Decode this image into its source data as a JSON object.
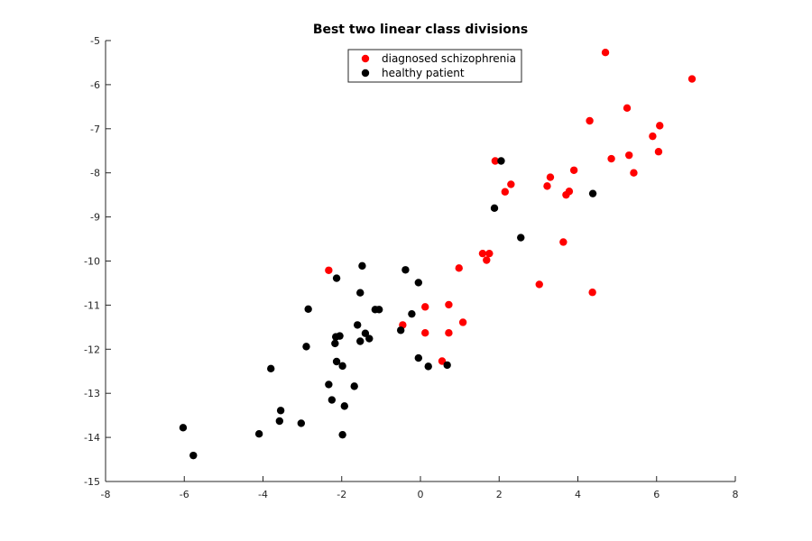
{
  "chart_data": {
    "type": "scatter",
    "title": "Best two linear class divisions",
    "xlabel": "",
    "ylabel": "",
    "xlim": [
      -8,
      8
    ],
    "ylim": [
      -15,
      -5
    ],
    "xticks": [
      -8,
      -6,
      -4,
      -2,
      0,
      2,
      4,
      6,
      8
    ],
    "yticks": [
      -5,
      -6,
      -7,
      -8,
      -9,
      -10,
      -11,
      -12,
      -13,
      -14,
      -15
    ],
    "grid": false,
    "legend_position": "top-center",
    "series": [
      {
        "name": "diagnosed schizophrenia",
        "color": "#ff0000",
        "points": [
          [
            4.7,
            -5.27
          ],
          [
            6.9,
            -5.87
          ],
          [
            4.3,
            -6.82
          ],
          [
            5.25,
            -6.53
          ],
          [
            6.08,
            -6.93
          ],
          [
            5.9,
            -7.17
          ],
          [
            5.3,
            -7.6
          ],
          [
            4.85,
            -7.68
          ],
          [
            6.05,
            -7.52
          ],
          [
            5.42,
            -8.0
          ],
          [
            1.9,
            -7.73
          ],
          [
            3.9,
            -7.94
          ],
          [
            3.3,
            -8.1
          ],
          [
            3.22,
            -8.3
          ],
          [
            2.3,
            -8.26
          ],
          [
            2.15,
            -8.43
          ],
          [
            3.78,
            -8.42
          ],
          [
            3.7,
            -8.5
          ],
          [
            3.63,
            -9.57
          ],
          [
            1.58,
            -9.83
          ],
          [
            1.75,
            -9.83
          ],
          [
            1.68,
            -9.98
          ],
          [
            0.98,
            -10.16
          ],
          [
            3.02,
            -10.53
          ],
          [
            4.37,
            -10.71
          ],
          [
            -2.33,
            -10.21
          ],
          [
            0.12,
            -11.04
          ],
          [
            0.72,
            -10.99
          ],
          [
            -0.45,
            -11.45
          ],
          [
            1.08,
            -11.39
          ],
          [
            0.12,
            -11.63
          ],
          [
            0.72,
            -11.63
          ],
          [
            0.55,
            -12.27
          ]
        ]
      },
      {
        "name": "healthy patient",
        "color": "#000000",
        "points": [
          [
            2.05,
            -7.73
          ],
          [
            4.38,
            -8.47
          ],
          [
            1.88,
            -8.8
          ],
          [
            2.55,
            -9.47
          ],
          [
            -1.48,
            -10.11
          ],
          [
            -0.38,
            -10.2
          ],
          [
            -2.13,
            -10.39
          ],
          [
            -0.05,
            -10.49
          ],
          [
            -1.53,
            -10.72
          ],
          [
            -2.85,
            -11.09
          ],
          [
            -1.15,
            -11.1
          ],
          [
            -1.05,
            -11.1
          ],
          [
            -0.22,
            -11.2
          ],
          [
            -1.6,
            -11.45
          ],
          [
            -0.5,
            -11.57
          ],
          [
            -2.15,
            -11.72
          ],
          [
            -2.05,
            -11.7
          ],
          [
            -1.4,
            -11.64
          ],
          [
            -1.3,
            -11.76
          ],
          [
            -2.17,
            -11.87
          ],
          [
            -1.53,
            -11.82
          ],
          [
            -2.9,
            -11.94
          ],
          [
            -2.13,
            -12.28
          ],
          [
            -1.98,
            -12.38
          ],
          [
            -3.8,
            -12.44
          ],
          [
            -0.05,
            -12.2
          ],
          [
            0.2,
            -12.39
          ],
          [
            0.68,
            -12.36
          ],
          [
            -2.33,
            -12.8
          ],
          [
            -1.68,
            -12.84
          ],
          [
            -2.25,
            -13.15
          ],
          [
            -1.93,
            -13.29
          ],
          [
            -3.55,
            -13.39
          ],
          [
            -3.58,
            -13.63
          ],
          [
            -3.03,
            -13.68
          ],
          [
            -6.03,
            -13.78
          ],
          [
            -4.1,
            -13.92
          ],
          [
            -1.98,
            -13.94
          ],
          [
            -5.77,
            -14.41
          ]
        ]
      }
    ]
  }
}
